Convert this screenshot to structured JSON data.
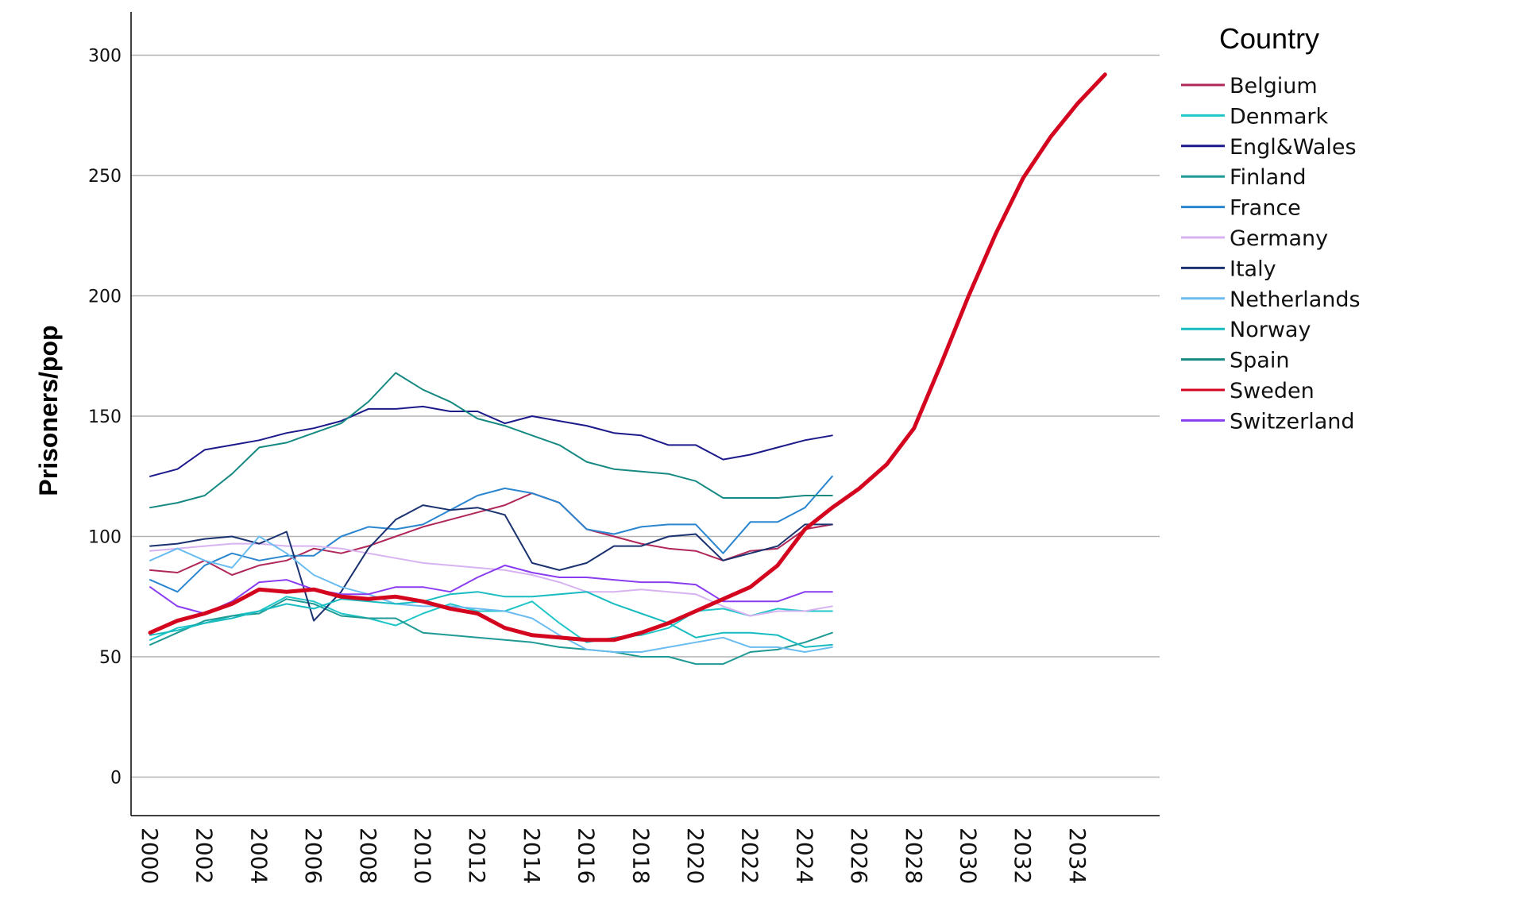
{
  "chart_data": {
    "type": "line",
    "ylabel": "Prisoners/pop",
    "ylim": [
      -16,
      318
    ],
    "xlim": [
      1999.3,
      2037.0
    ],
    "yticks": [
      0,
      50,
      100,
      150,
      200,
      250,
      300
    ],
    "xticks": [
      2000,
      2002,
      2004,
      2006,
      2008,
      2010,
      2012,
      2014,
      2016,
      2018,
      2020,
      2022,
      2024,
      2026,
      2028,
      2030,
      2032,
      2034
    ],
    "grid": "horizontal",
    "legend": {
      "title": "Country",
      "placement": "right"
    },
    "series": [
      {
        "name": "Belgium",
        "color": "#b0275a",
        "width": 2,
        "x": [
          2000,
          2001,
          2002,
          2003,
          2004,
          2005,
          2006,
          2007,
          2008,
          2009,
          2010,
          2011,
          2012,
          2013,
          2014,
          2015,
          2016,
          2017,
          2018,
          2019,
          2020,
          2021,
          2022,
          2023,
          2024,
          2025
        ],
        "y": [
          86,
          85,
          90,
          84,
          88,
          90,
          95,
          93,
          96,
          100,
          104,
          107,
          110,
          113,
          118,
          114,
          103,
          100,
          97,
          95,
          94,
          90,
          94,
          95,
          103,
          105
        ]
      },
      {
        "name": "Denmark",
        "color": "#20c6c8",
        "width": 2,
        "x": [
          2000,
          2001,
          2002,
          2003,
          2004,
          2005,
          2006,
          2007,
          2008,
          2009,
          2010,
          2011,
          2012,
          2013,
          2014,
          2015,
          2016,
          2017,
          2018,
          2019,
          2020,
          2021,
          2022,
          2023,
          2024,
          2025
        ],
        "y": [
          57,
          62,
          64,
          67,
          69,
          75,
          73,
          68,
          66,
          63,
          68,
          72,
          69,
          69,
          73,
          64,
          56,
          58,
          59,
          62,
          69,
          70,
          67,
          70,
          69,
          69
        ]
      },
      {
        "name": "Engl&Wales",
        "color": "#1c1a8a",
        "width": 2,
        "x": [
          2000,
          2001,
          2002,
          2003,
          2004,
          2005,
          2006,
          2007,
          2008,
          2009,
          2010,
          2011,
          2012,
          2013,
          2014,
          2015,
          2016,
          2017,
          2018,
          2019,
          2020,
          2021,
          2022,
          2023,
          2024,
          2025
        ],
        "y": [
          125,
          128,
          136,
          138,
          140,
          143,
          145,
          148,
          153,
          153,
          154,
          152,
          152,
          147,
          150,
          148,
          146,
          143,
          142,
          138,
          138,
          132,
          134,
          137,
          140,
          142
        ]
      },
      {
        "name": "Finland",
        "color": "#1f9a94",
        "width": 2,
        "x": [
          2000,
          2001,
          2002,
          2003,
          2004,
          2005,
          2006,
          2007,
          2008,
          2009,
          2010,
          2011,
          2012,
          2013,
          2014,
          2015,
          2016,
          2017,
          2018,
          2019,
          2020,
          2021,
          2022,
          2023,
          2024,
          2025
        ],
        "y": [
          55,
          60,
          65,
          67,
          68,
          74,
          72,
          67,
          66,
          66,
          60,
          59,
          58,
          57,
          56,
          54,
          53,
          52,
          50,
          50,
          47,
          47,
          52,
          53,
          56,
          60
        ]
      },
      {
        "name": "France",
        "color": "#2b86d0",
        "width": 2,
        "x": [
          2000,
          2001,
          2002,
          2003,
          2004,
          2005,
          2006,
          2007,
          2008,
          2009,
          2010,
          2011,
          2012,
          2013,
          2014,
          2015,
          2016,
          2017,
          2018,
          2019,
          2020,
          2021,
          2022,
          2023,
          2024,
          2025
        ],
        "y": [
          82,
          77,
          88,
          93,
          90,
          92,
          92,
          100,
          104,
          103,
          105,
          111,
          117,
          120,
          118,
          114,
          103,
          101,
          104,
          105,
          105,
          93,
          106,
          106,
          112,
          125
        ]
      },
      {
        "name": "Germany",
        "color": "#d7b3f2",
        "width": 2,
        "x": [
          2000,
          2001,
          2002,
          2003,
          2004,
          2005,
          2006,
          2007,
          2008,
          2009,
          2010,
          2011,
          2012,
          2013,
          2014,
          2015,
          2016,
          2017,
          2018,
          2019,
          2020,
          2021,
          2022,
          2023,
          2024,
          2025
        ],
        "y": [
          94,
          95,
          96,
          97,
          97,
          96,
          96,
          95,
          93,
          91,
          89,
          88,
          87,
          86,
          84,
          81,
          77,
          77,
          78,
          77,
          76,
          71,
          67,
          69,
          69,
          71
        ]
      },
      {
        "name": "Italy",
        "color": "#1a3270",
        "width": 2,
        "x": [
          2000,
          2001,
          2002,
          2003,
          2004,
          2005,
          2006,
          2007,
          2008,
          2009,
          2010,
          2011,
          2012,
          2013,
          2014,
          2015,
          2016,
          2017,
          2018,
          2019,
          2020,
          2021,
          2022,
          2023,
          2024,
          2025
        ],
        "y": [
          96,
          97,
          99,
          100,
          97,
          102,
          65,
          77,
          95,
          107,
          113,
          111,
          112,
          109,
          89,
          86,
          89,
          96,
          96,
          100,
          101,
          90,
          93,
          96,
          105,
          105
        ]
      },
      {
        "name": "Netherlands",
        "color": "#6bbcf0",
        "width": 2,
        "x": [
          2000,
          2001,
          2002,
          2003,
          2004,
          2005,
          2006,
          2007,
          2008,
          2009,
          2010,
          2011,
          2012,
          2013,
          2014,
          2015,
          2016,
          2017,
          2018,
          2019,
          2020,
          2021,
          2022,
          2023,
          2024,
          2025
        ],
        "y": [
          90,
          95,
          90,
          87,
          100,
          93,
          84,
          79,
          76,
          72,
          71,
          71,
          70,
          69,
          66,
          59,
          53,
          52,
          52,
          54,
          56,
          58,
          54,
          54,
          52,
          54
        ]
      },
      {
        "name": "Norway",
        "color": "#18bcc0",
        "width": 2,
        "x": [
          2000,
          2001,
          2002,
          2003,
          2004,
          2005,
          2006,
          2007,
          2008,
          2009,
          2010,
          2011,
          2012,
          2013,
          2014,
          2015,
          2016,
          2017,
          2018,
          2019,
          2020,
          2021,
          2022,
          2023,
          2024,
          2025
        ],
        "y": [
          59,
          61,
          64,
          66,
          69,
          72,
          70,
          74,
          73,
          72,
          73,
          76,
          77,
          75,
          75,
          76,
          77,
          72,
          68,
          64,
          58,
          60,
          60,
          59,
          54,
          55
        ]
      },
      {
        "name": "Spain",
        "color": "#168a82",
        "width": 2,
        "x": [
          2000,
          2001,
          2002,
          2003,
          2004,
          2005,
          2006,
          2007,
          2008,
          2009,
          2010,
          2011,
          2012,
          2013,
          2014,
          2015,
          2016,
          2017,
          2018,
          2019,
          2020,
          2021,
          2022,
          2023,
          2024,
          2025
        ],
        "y": [
          112,
          114,
          117,
          126,
          137,
          139,
          143,
          147,
          156,
          168,
          161,
          156,
          149,
          146,
          142,
          138,
          131,
          128,
          127,
          126,
          123,
          116,
          116,
          116,
          117,
          117
        ]
      },
      {
        "name": "Sweden",
        "color": "#d4061f",
        "width": 5,
        "x": [
          2000,
          2001,
          2002,
          2003,
          2004,
          2005,
          2006,
          2007,
          2008,
          2009,
          2010,
          2011,
          2012,
          2013,
          2014,
          2015,
          2016,
          2017,
          2018,
          2019,
          2020,
          2021,
          2022,
          2023,
          2024,
          2025,
          2026,
          2027,
          2028,
          2029,
          2030,
          2031,
          2032,
          2033,
          2034,
          2035
        ],
        "y": [
          60,
          65,
          68,
          72,
          78,
          77,
          78,
          75,
          74,
          75,
          73,
          70,
          68,
          62,
          59,
          58,
          57,
          57,
          60,
          64,
          69,
          74,
          79,
          88,
          103,
          112,
          120,
          130,
          145,
          172,
          200,
          226,
          249,
          266,
          280,
          292
        ]
      },
      {
        "name": "Switzerland",
        "color": "#8a3cf0",
        "width": 2,
        "x": [
          2000,
          2001,
          2002,
          2003,
          2004,
          2005,
          2006,
          2007,
          2008,
          2009,
          2010,
          2011,
          2012,
          2013,
          2014,
          2015,
          2016,
          2017,
          2018,
          2019,
          2020,
          2021,
          2022,
          2023,
          2024,
          2025
        ],
        "y": [
          79,
          71,
          68,
          73,
          81,
          82,
          78,
          76,
          76,
          79,
          79,
          77,
          83,
          88,
          85,
          83,
          83,
          82,
          81,
          81,
          80,
          73,
          73,
          73,
          77,
          77
        ]
      }
    ]
  }
}
